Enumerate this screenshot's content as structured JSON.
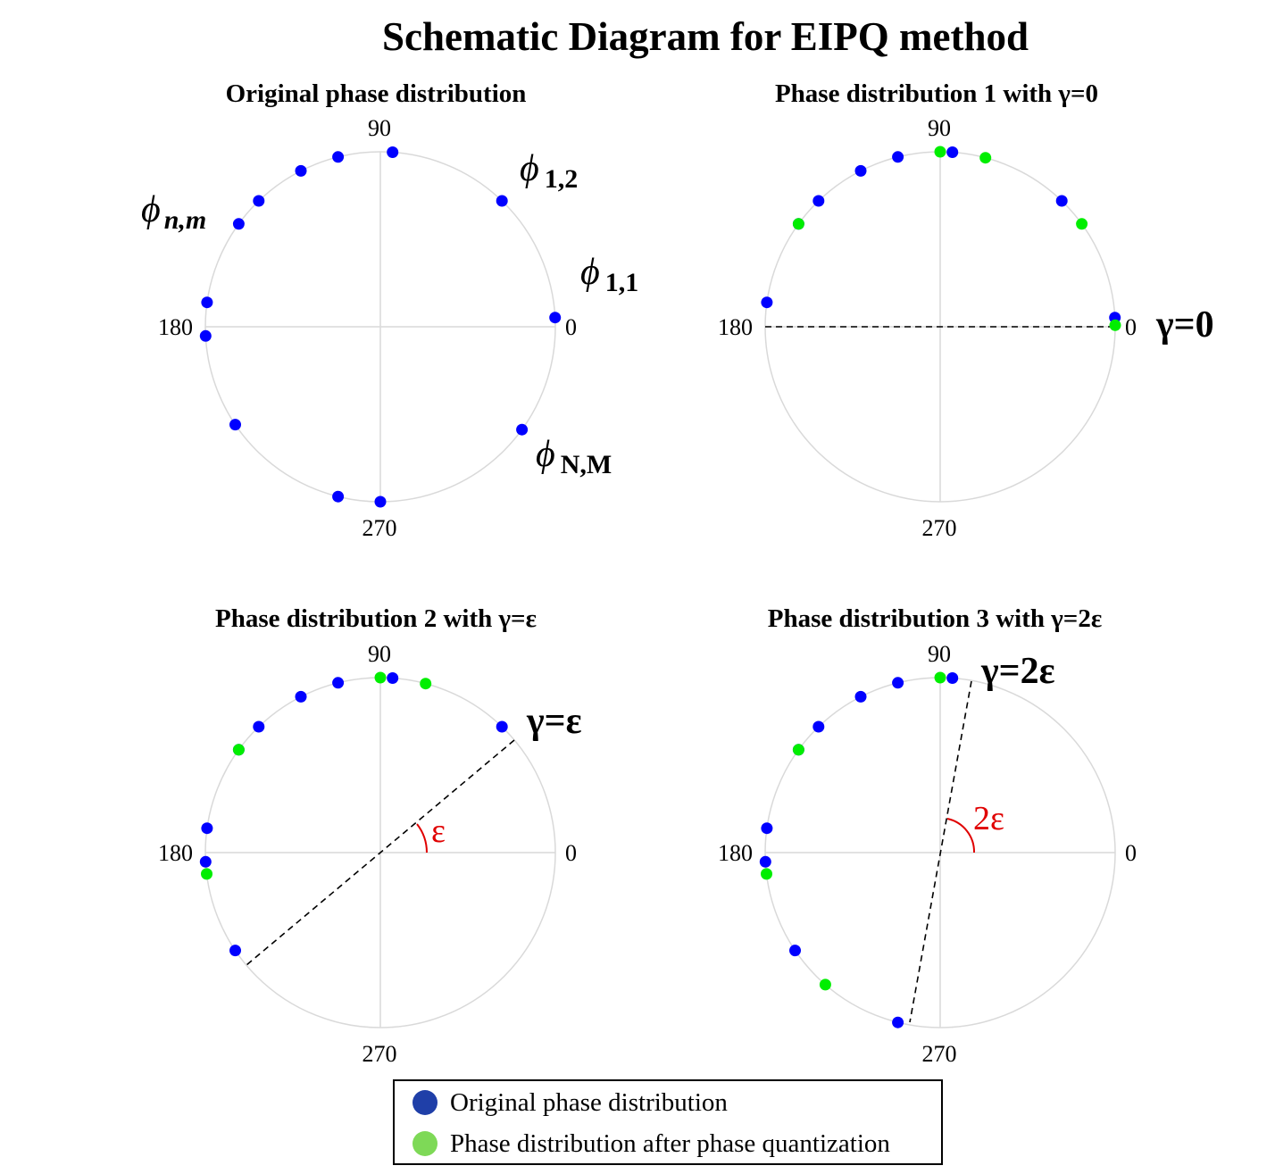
{
  "title": "Schematic Diagram for EIPQ method",
  "colors": {
    "original": "#0000ff",
    "quantized": "#00ee00",
    "legend_original": "#1f3fa8",
    "legend_quantized": "#7ed957",
    "angle_annotation": "#e00000",
    "circle": "#d9d9d9"
  },
  "tick_labels": {
    "right": "0",
    "top": "90",
    "left": "180",
    "bottom": "270"
  },
  "panels": [
    {
      "id": "original",
      "title": "Original phase distribution",
      "original_phases": [
        3,
        46,
        86,
        104,
        117,
        134,
        144,
        172,
        183,
        214,
        256,
        270,
        324
      ],
      "quantized_phases": [],
      "point_labels": [
        {
          "sym": "ϕ",
          "sub": "1,1",
          "italic_sub": false
        },
        {
          "sym": "ϕ",
          "sub": "1,2",
          "italic_sub": false
        },
        {
          "sym": "ϕ",
          "sub": "n,m",
          "italic_sub": true
        },
        {
          "sym": "ϕ",
          "sub": "N,M",
          "italic_sub": false
        }
      ]
    },
    {
      "id": "gamma0",
      "title": "Phase distribution 1 with γ=0",
      "original_phases": [
        3,
        46,
        86,
        104,
        117,
        134,
        144,
        172
      ],
      "quantized_phases": [
        0.5,
        36,
        75,
        90,
        144
      ],
      "gamma_label": "γ=0",
      "gamma_deg": 0
    },
    {
      "id": "gamma-eps",
      "title": "Phase distribution 2 with γ=ε",
      "original_phases": [
        46,
        86,
        104,
        117,
        134,
        144,
        172,
        183,
        214
      ],
      "quantized_phases": [
        75,
        90,
        144,
        187
      ],
      "gamma_label": "γ=ε",
      "gamma_deg": 36,
      "angle_label": "ε"
    },
    {
      "id": "gamma-2eps",
      "title": "Phase distribution 3 with γ=2ε",
      "original_phases": [
        86,
        104,
        117,
        134,
        144,
        172,
        183,
        214,
        256
      ],
      "quantized_phases": [
        90,
        144,
        187,
        229
      ],
      "gamma_label": "γ=2ε",
      "gamma_deg": 79,
      "angle_label": "2ε"
    }
  ],
  "legend": {
    "original": "Original phase distribution",
    "quantized": "Phase distribution after phase quantization"
  }
}
